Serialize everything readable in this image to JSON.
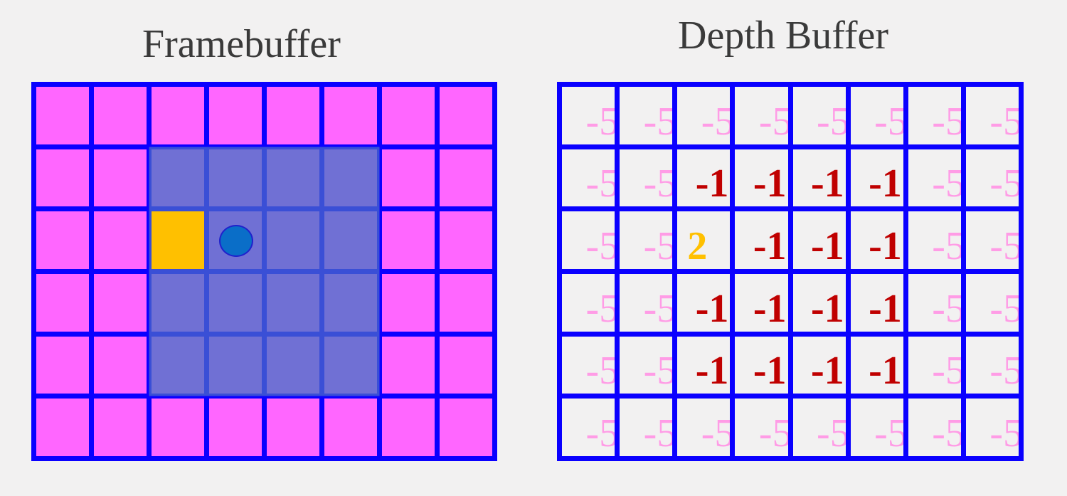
{
  "framebuffer": {
    "title": "Framebuffer",
    "rows": 6,
    "cols": 8,
    "cells": [
      [
        "bg",
        "bg",
        "bg",
        "bg",
        "bg",
        "bg",
        "bg",
        "bg"
      ],
      [
        "bg",
        "bg",
        "tri",
        "tri",
        "tri",
        "tri",
        "bg",
        "bg"
      ],
      [
        "bg",
        "bg",
        "hit",
        "tri",
        "tri",
        "tri",
        "bg",
        "bg"
      ],
      [
        "bg",
        "bg",
        "tri",
        "tri",
        "tri",
        "tri",
        "bg",
        "bg"
      ],
      [
        "bg",
        "bg",
        "tri",
        "tri",
        "tri",
        "tri",
        "bg",
        "bg"
      ],
      [
        "bg",
        "bg",
        "bg",
        "bg",
        "bg",
        "bg",
        "bg",
        "bg"
      ]
    ],
    "colors": {
      "bg": "#ff66ff",
      "tri": "#7070d4",
      "hit": "#ffc000",
      "grid": "#0a00ff",
      "dot": "#0a6ec8"
    }
  },
  "depthbuffer": {
    "title": "Depth Buffer",
    "rows": 6,
    "cols": 8,
    "values": [
      [
        "-5",
        "-5",
        "-5",
        "-5",
        "-5",
        "-5",
        "-5",
        "-5"
      ],
      [
        "-5",
        "-5",
        "-1",
        "-1",
        "-1",
        "-1",
        "-5",
        "-5"
      ],
      [
        "-5",
        "-5",
        "2",
        "-1",
        "-1",
        "-1",
        "-5",
        "-5"
      ],
      [
        "-5",
        "-5",
        "-1",
        "-1",
        "-1",
        "-1",
        "-5",
        "-5"
      ],
      [
        "-5",
        "-5",
        "-1",
        "-1",
        "-1",
        "-1",
        "-5",
        "-5"
      ],
      [
        "-5",
        "-5",
        "-5",
        "-5",
        "-5",
        "-5",
        "-5",
        "-5"
      ]
    ],
    "colors": {
      "bg": "#ff9ce6",
      "tri": "#c00000",
      "hit": "#ffc000",
      "grid": "#0a00ff"
    }
  }
}
